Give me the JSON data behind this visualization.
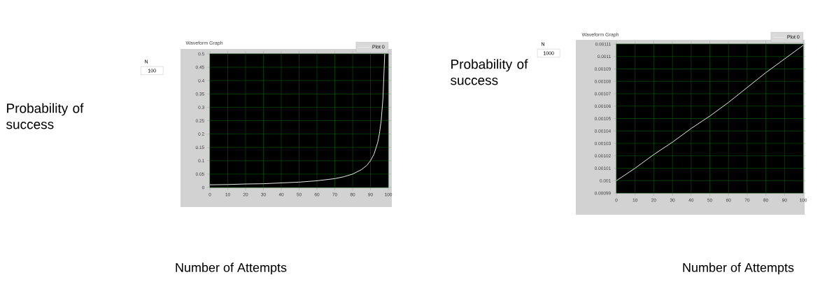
{
  "chart_data": [
    {
      "type": "line",
      "title": "Waveform Graph",
      "xlabel": "Number of Attempts",
      "ylabel": "Probability of success",
      "annotations": [
        "N",
        "100"
      ],
      "x": [
        0,
        10,
        20,
        30,
        40,
        50,
        60,
        70,
        75,
        80,
        85,
        88,
        90,
        92,
        94,
        95,
        96,
        97,
        98
      ],
      "series": [
        {
          "name": "Plot 0",
          "color": "#e8e8e8",
          "values": [
            0.01,
            0.011,
            0.013,
            0.014,
            0.017,
            0.02,
            0.025,
            0.033,
            0.04,
            0.05,
            0.067,
            0.083,
            0.1,
            0.125,
            0.167,
            0.2,
            0.25,
            0.333,
            0.5
          ]
        }
      ],
      "xlim": [
        0,
        100
      ],
      "xticks": [
        0,
        10,
        20,
        30,
        40,
        50,
        60,
        70,
        80,
        90,
        100
      ],
      "ylim": [
        0,
        0.5
      ],
      "yticks": [
        0,
        0.05,
        0.1,
        0.15,
        0.2,
        0.25,
        0.3,
        0.35,
        0.4,
        0.45,
        0.5
      ],
      "grid": true,
      "legend": "top right",
      "marker": "none",
      "line_style": "solid"
    },
    {
      "type": "line",
      "title": "Waveform Graph",
      "xlabel": "Number of Attempts",
      "ylabel": "Probability of success",
      "annotations": [
        "N",
        "1000"
      ],
      "x": [
        0,
        10,
        20,
        30,
        40,
        50,
        60,
        70,
        80,
        90,
        100
      ],
      "series": [
        {
          "name": "Plot 0",
          "color": "#e8e8e8",
          "values": [
            0.001,
            0.00101,
            0.001021,
            0.001031,
            0.001042,
            0.001052,
            0.001063,
            0.001075,
            0.001087,
            0.001098,
            0.001109
          ]
        }
      ],
      "xlim": [
        0,
        100
      ],
      "xticks": [
        0,
        10,
        20,
        30,
        40,
        50,
        60,
        70,
        80,
        90,
        100
      ],
      "ylim": [
        0.00099,
        0.00111
      ],
      "yticks": [
        0.00099,
        0.001,
        0.00101,
        0.00102,
        0.00103,
        0.00104,
        0.00105,
        0.00106,
        0.00107,
        0.00108,
        0.00109,
        0.0011,
        0.00111
      ],
      "grid": true,
      "legend": "top right",
      "marker": "none",
      "line_style": "solid"
    }
  ]
}
